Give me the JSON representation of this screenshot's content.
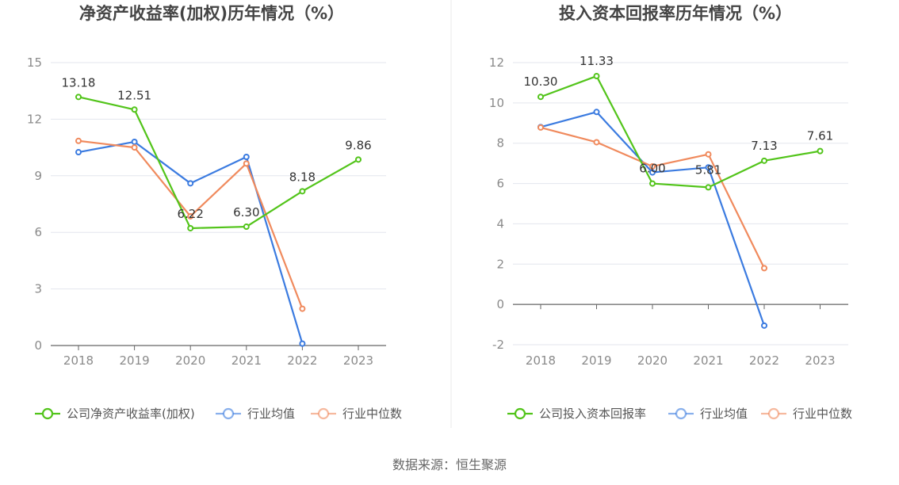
{
  "source": "数据来源：恒生聚源",
  "chart_data": [
    {
      "type": "line",
      "title": "净资产收益率(加权)历年情况（%）",
      "categories": [
        "2018",
        "2019",
        "2020",
        "2021",
        "2022",
        "2023"
      ],
      "ylim": [
        0,
        15
      ],
      "yticks": [
        0,
        3,
        6,
        9,
        12,
        15
      ],
      "grid": true,
      "legend_position": "bottom",
      "series": [
        {
          "name": "公司净资产收益率(加权)",
          "color": "#52c41a",
          "values": [
            13.18,
            12.51,
            6.22,
            6.3,
            8.18,
            9.86
          ],
          "labels": [
            "13.18",
            "12.51",
            "6.22",
            "6.30",
            "8.18",
            "9.86"
          ]
        },
        {
          "name": "行业均值",
          "color": "#3b7be0",
          "values": [
            10.25,
            10.8,
            8.6,
            10.0,
            0.1,
            null
          ]
        },
        {
          "name": "行业中位数",
          "color": "#f08a5d",
          "values": [
            10.85,
            10.5,
            6.85,
            9.65,
            1.95,
            null
          ]
        }
      ]
    },
    {
      "type": "line",
      "title": "投入资本回报率历年情况（%）",
      "categories": [
        "2018",
        "2019",
        "2020",
        "2021",
        "2022",
        "2023"
      ],
      "ylim": [
        -2,
        12
      ],
      "yticks": [
        -2,
        0,
        2,
        4,
        6,
        8,
        10,
        12
      ],
      "grid": true,
      "legend_position": "bottom",
      "series": [
        {
          "name": "公司投入资本回报率",
          "color": "#52c41a",
          "values": [
            10.3,
            11.33,
            6.0,
            5.81,
            7.13,
            7.61
          ],
          "labels": [
            "10.30",
            "11.33",
            "6.00",
            "5.81",
            "7.13",
            "7.61"
          ]
        },
        {
          "name": "行业均值",
          "color": "#3b7be0",
          "values": [
            8.8,
            9.55,
            6.55,
            6.8,
            -1.05,
            null
          ]
        },
        {
          "name": "行业中位数",
          "color": "#f08a5d",
          "values": [
            8.78,
            8.05,
            6.85,
            7.45,
            1.8,
            null
          ]
        }
      ]
    }
  ]
}
